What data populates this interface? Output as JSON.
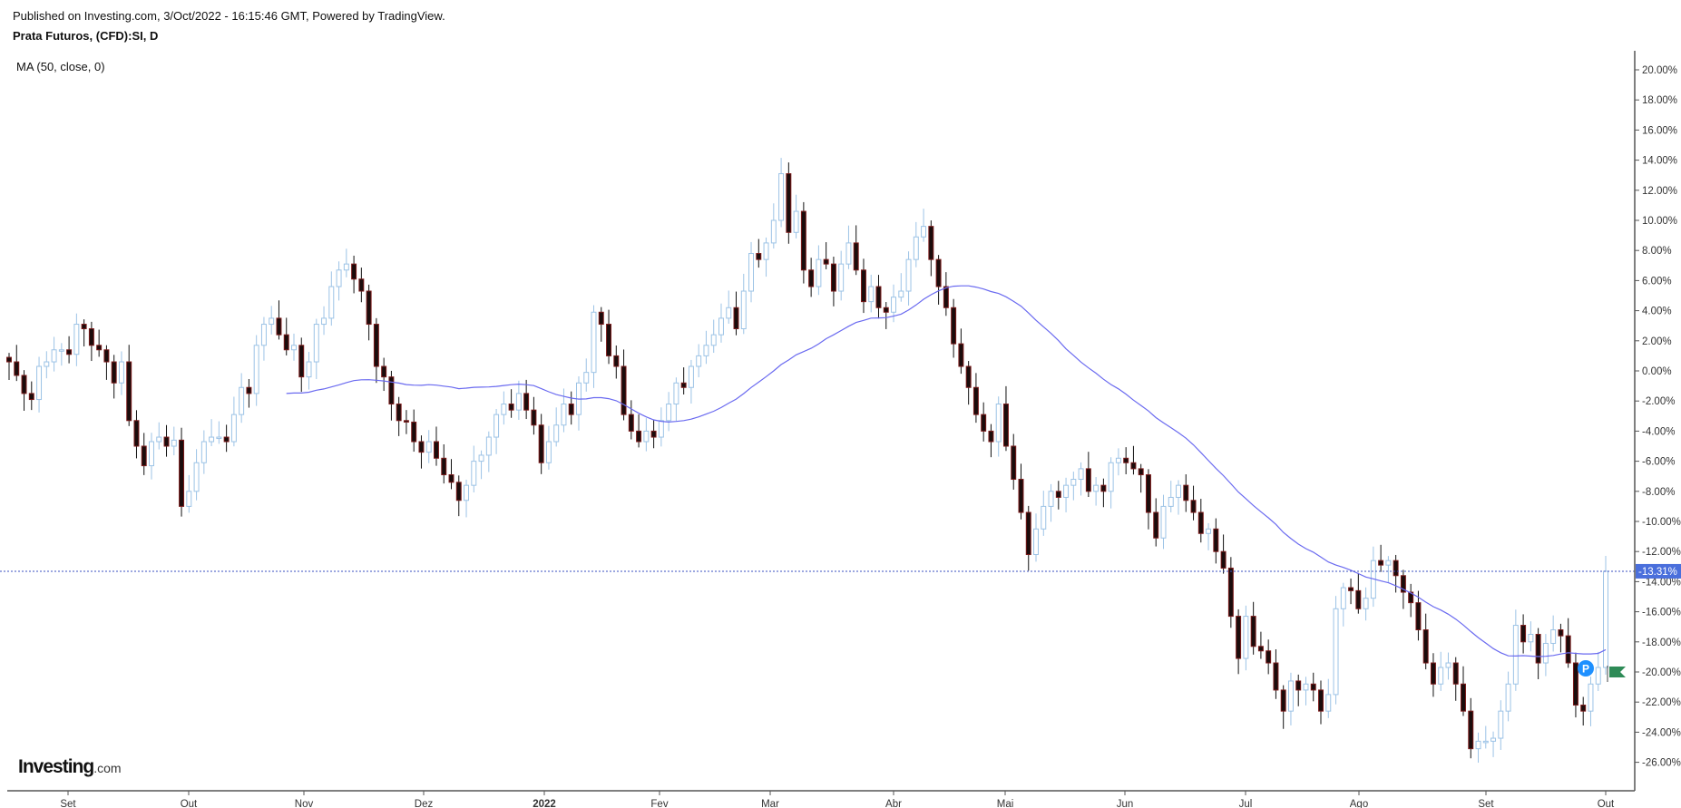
{
  "header": {
    "published": "Published on Investing.com, 3/Oct/2022 - 16:15:46 GMT, Powered by TradingView.",
    "symbol": "Prata Futuros, (CFD):SI, D",
    "indicator": "MA (50, close, 0)"
  },
  "logo": {
    "main": "Investing",
    "suffix": ".com"
  },
  "colors": {
    "up": "#9cc3e6",
    "down_fill": "#1b0c0c",
    "down_border": "#7a1a1a",
    "ma": "#6a6af0",
    "last_label": "#4a6fdc",
    "flag": "#2e8b57",
    "marker": "#1e90ff"
  },
  "chart_data": {
    "type": "candlestick",
    "title": "Prata Futuros, (CFD):SI, D",
    "ylabel": "% change",
    "ylim": [
      -28,
      21
    ],
    "y_ticks": [
      "20.00%",
      "18.00%",
      "16.00%",
      "14.00%",
      "12.00%",
      "10.00%",
      "8.00%",
      "6.00%",
      "4.00%",
      "2.00%",
      "0.00%",
      "-2.00%",
      "-4.00%",
      "-6.00%",
      "-8.00%",
      "-10.00%",
      "-12.00%",
      "-14.00%",
      "-16.00%",
      "-18.00%",
      "-20.00%",
      "-22.00%",
      "-24.00%",
      "-26.00%"
    ],
    "x_ticks": [
      "Set",
      "Out",
      "Nov",
      "Dez",
      "2022",
      "Fev",
      "Mar",
      "Abr",
      "Mai",
      "Jun",
      "Jul",
      "Ago",
      "Set",
      "Out"
    ],
    "last_value": -13.31,
    "last_label": "-13.31%",
    "marker_label": "P",
    "ma_period": 50,
    "closes": [
      0.6,
      -0.3,
      -1.5,
      -1.9,
      0.3,
      0.6,
      1.4,
      1.4,
      1.1,
      3.1,
      2.8,
      1.7,
      1.4,
      0.6,
      -0.8,
      0.6,
      -3.3,
      -5,
      -6.3,
      -4.7,
      -4.4,
      -5,
      -4.6,
      -9,
      -8,
      -6.1,
      -4.7,
      -4.4,
      -4.4,
      -4.7,
      -2.9,
      -1.1,
      -1.5,
      1.7,
      3.1,
      3.5,
      2.4,
      1.4,
      1.7,
      -0.4,
      0.6,
      3.1,
      3.5,
      5.6,
      6.7,
      7.1,
      6.1,
      5.3,
      3.1,
      0.3,
      -0.4,
      -2.2,
      -3.3,
      -3.4,
      -4.7,
      -5.4,
      -4.7,
      -5.8,
      -6.9,
      -7.4,
      -8.6,
      -7.6,
      -6,
      -5.6,
      -4.4,
      -2.9,
      -2.2,
      -2.6,
      -1.5,
      -2.6,
      -3.6,
      -6.1,
      -4.7,
      -3.6,
      -2.2,
      -2.9,
      -0.8,
      -0.1,
      3.9,
      3.1,
      1,
      0.3,
      -2.9,
      -4,
      -4.7,
      -4,
      -4.4,
      -3.3,
      -2.2,
      -0.8,
      -1.1,
      0.3,
      1,
      1.7,
      2.4,
      3.5,
      4.2,
      2.8,
      5.3,
      7.8,
      7.4,
      8.5,
      10,
      13.1,
      9.2,
      10.6,
      6.7,
      5.6,
      7.4,
      7.1,
      5.3,
      7.1,
      8.5,
      6.7,
      4.6,
      5.6,
      4.2,
      3.9,
      4.9,
      5.3,
      7.4,
      8.9,
      9.6,
      7.4,
      5.6,
      4.2,
      1.8,
      0.3,
      -1.1,
      -2.9,
      -4,
      -4.7,
      -2.2,
      -5,
      -7.2,
      -9.4,
      -12.2,
      -10.5,
      -9,
      -8,
      -8.4,
      -7.6,
      -7.2,
      -6.5,
      -8,
      -7.6,
      -8,
      -6.1,
      -5.8,
      -6.1,
      -6.5,
      -6.9,
      -9.4,
      -11.1,
      -9,
      -8.4,
      -7.6,
      -8.6,
      -9.4,
      -10.8,
      -10.5,
      -12,
      -13.1,
      -16.3,
      -19.1,
      -16.3,
      -18.3,
      -18.6,
      -19.4,
      -21.2,
      -22.6,
      -20.6,
      -21.2,
      -20.8,
      -21.2,
      -22.6,
      -21.5,
      -15.8,
      -14.4,
      -14.6,
      -15.8,
      -15.1,
      -12.6,
      -12.9,
      -12.6,
      -13.6,
      -14.7,
      -15.4,
      -17.2,
      -19.4,
      -20.8,
      -19.7,
      -19.4,
      -20.8,
      -22.6,
      -25.1,
      -24.6,
      -24.6,
      -24.4,
      -22.6,
      -20.8,
      -16.9,
      -18,
      -17.5,
      -19.4,
      -18.1,
      -17.2,
      -17.6,
      -19.4,
      -22.2,
      -22.6,
      -20.8,
      -19.7,
      -13.31
    ]
  }
}
